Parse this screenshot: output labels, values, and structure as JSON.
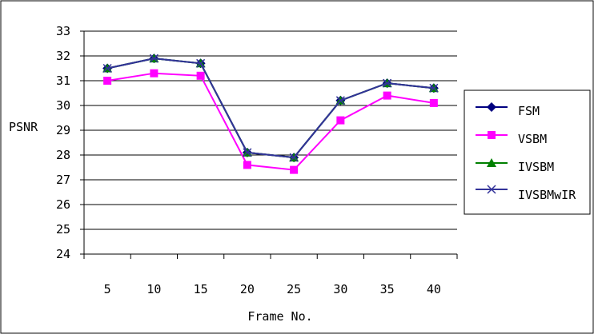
{
  "chart_data": {
    "type": "line",
    "title": "",
    "xlabel": "Frame No.",
    "ylabel": "PSNR",
    "categories": [
      "5",
      "10",
      "15",
      "20",
      "25",
      "30",
      "35",
      "40"
    ],
    "ylim": [
      24,
      33
    ],
    "yticks": [
      "24",
      "25",
      "26",
      "27",
      "28",
      "29",
      "30",
      "31",
      "32",
      "33"
    ],
    "grid": "horizontal",
    "legend_position": "right",
    "series": [
      {
        "name": "FSM",
        "color": "#000080",
        "marker": "diamond",
        "values": [
          31.5,
          31.9,
          31.7,
          28.1,
          27.9,
          30.2,
          30.9,
          30.7
        ]
      },
      {
        "name": "VSBM",
        "color": "#FF00FF",
        "marker": "square",
        "values": [
          31.0,
          31.3,
          31.2,
          27.6,
          27.4,
          29.4,
          30.4,
          30.1
        ]
      },
      {
        "name": "IVSBM",
        "color": "#008000",
        "marker": "triangle",
        "values": [
          31.5,
          31.9,
          31.7,
          28.1,
          27.9,
          30.2,
          30.9,
          30.7
        ]
      },
      {
        "name": "IVSBMwIR",
        "color": "#333399",
        "marker": "x",
        "values": [
          31.5,
          31.9,
          31.7,
          28.1,
          27.9,
          30.2,
          30.9,
          30.7
        ]
      }
    ]
  }
}
